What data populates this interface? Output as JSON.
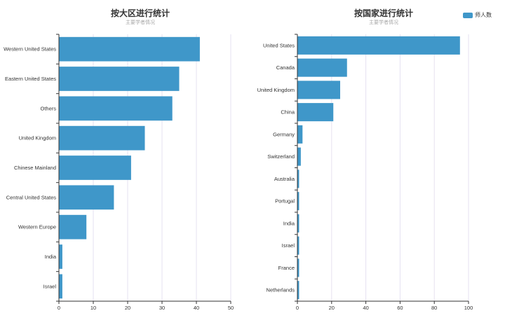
{
  "legend": {
    "label": "师人数",
    "color": "#3f97c9"
  },
  "chart_data": [
    {
      "type": "bar",
      "orientation": "horizontal",
      "title": "按大区进行统计",
      "subtitle": "主要学者情况",
      "categories": [
        "Western United States",
        "Eastern United States",
        "Others",
        "United Kingdom",
        "Chinese Mainland",
        "Central United States",
        "Western Europe",
        "India",
        "Israel"
      ],
      "series": [
        {
          "name": "师人数",
          "values": [
            41,
            35,
            33,
            25,
            21,
            16,
            8,
            1,
            1
          ]
        }
      ],
      "xlim": [
        0,
        50
      ],
      "xticks": [
        0,
        10,
        20,
        30,
        40,
        50
      ],
      "grid": true,
      "bar_color": "#3f97c9"
    },
    {
      "type": "bar",
      "orientation": "horizontal",
      "title": "按国家进行统计",
      "subtitle": "主要学者情况",
      "categories": [
        "United States",
        "Canada",
        "United Kingdom",
        "China",
        "Germany",
        "Switzerland",
        "Australia",
        "Portugal",
        "India",
        "Israel",
        "France",
        "Netherlands"
      ],
      "series": [
        {
          "name": "师人数",
          "values": [
            95,
            29,
            25,
            21,
            3,
            2,
            1,
            1,
            1,
            1,
            1,
            1
          ]
        }
      ],
      "xlim": [
        0,
        100
      ],
      "xticks": [
        0,
        20,
        40,
        60,
        80,
        100
      ],
      "grid": true,
      "bar_color": "#3f97c9"
    }
  ]
}
